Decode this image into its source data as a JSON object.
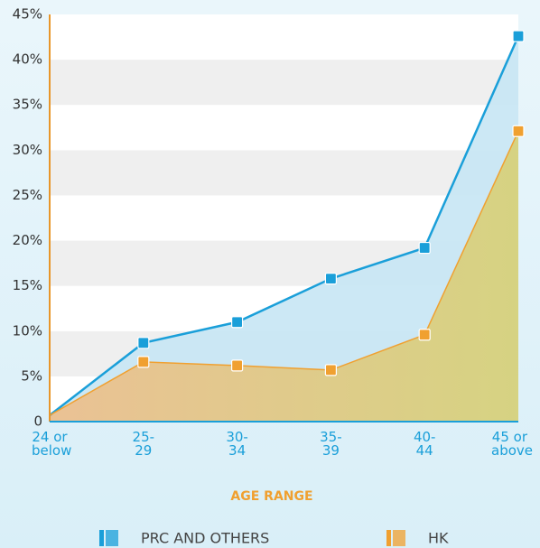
{
  "chart_data": {
    "type": "area",
    "x_label": "AGE RANGE",
    "categories": [
      "24 or below",
      "25-29",
      "30-34",
      "35-39",
      "40-44",
      "45 or above"
    ],
    "series": [
      {
        "name": "PRC AND OTHERS",
        "color": "#1a9fd9",
        "values": [
          0.7,
          8.7,
          11,
          15.8,
          19.2,
          42.6
        ]
      },
      {
        "name": "HK",
        "color": "#f0a030",
        "values": [
          0.7,
          6.6,
          6.2,
          5.7,
          9.6,
          32.1
        ]
      }
    ],
    "ylim": [
      0,
      45
    ],
    "yticks": [
      0,
      {
        "value": 5,
        "label": "5%"
      },
      {
        "value": 10,
        "label": "10%"
      },
      {
        "value": 15,
        "label": "15%"
      },
      {
        "value": 20,
        "label": "20%"
      },
      {
        "value": 25,
        "label": "25%"
      },
      {
        "value": 30,
        "label": "30%"
      },
      {
        "value": 35,
        "label": "35%"
      },
      {
        "value": 40,
        "label": "40%"
      },
      {
        "value": 45,
        "label": "45%"
      }
    ],
    "grid": true
  }
}
